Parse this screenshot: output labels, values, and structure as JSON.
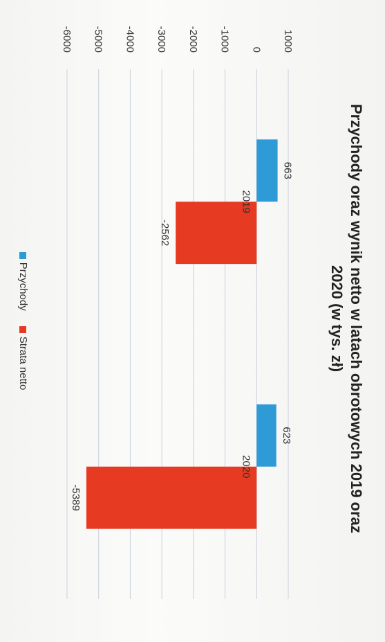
{
  "chart_data": {
    "type": "bar",
    "title": "Przychody oraz wynik netto w latach obrotowych 2019 oraz 2020 (w tys. zł)",
    "categories": [
      "2019",
      "2020"
    ],
    "series": [
      {
        "name": "Przychody",
        "values": [
          663,
          623
        ],
        "color": "#2e9bd6"
      },
      {
        "name": "Strata netto",
        "values": [
          -2562,
          -5389
        ],
        "color": "#e63a22"
      }
    ],
    "ylim": [
      -6000,
      1000
    ],
    "yticks": [
      1000,
      0,
      -1000,
      -2000,
      -3000,
      -4000,
      -5000,
      -6000
    ],
    "grid": true,
    "legend_position": "bottom",
    "orientation": "image rotated 90 degrees clockwise"
  }
}
